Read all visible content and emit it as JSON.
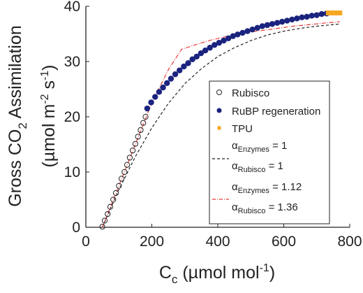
{
  "chart_data": {
    "type": "scatter",
    "x_ticks": [
      0,
      200,
      400,
      600,
      800
    ],
    "y_ticks": [
      0,
      10,
      20,
      30,
      40
    ],
    "xlim": [
      0,
      800
    ],
    "ylim": [
      0,
      40
    ],
    "xlabel": {
      "main": "C",
      "sub": "c",
      "rest": " (µmol mol",
      "sup": "-1",
      "end": ")"
    },
    "ylabel": {
      "line1_a": "Gross CO",
      "line1_sub": "2",
      "line1_b": " Assimilation",
      "line2_a": "(µmol m",
      "line2_sup1": "-2",
      "line2_mid": " s",
      "line2_sup2": "-1",
      "line2_end": ")"
    },
    "colors": {
      "rubisco": "#222222",
      "rubp": "#1a237e",
      "tpu": "#f5a623",
      "red_line": "#e53935",
      "black_line": "#222222"
    },
    "legend": {
      "position": "right, inside axes",
      "rubisco": "Rubisco",
      "rubp": "RuBP regeneration",
      "tpu": "TPU",
      "alpha_enz": "α",
      "enz_sub": "Enzymes",
      "alpha_rub": "α",
      "rub_sub": "Rubisco",
      "fit1_enz": " = 1",
      "fit1_rub": " = 1",
      "fit2_enz": " = 1.12",
      "fit2_rub": " = 1.36"
    },
    "series": [
      {
        "name": "Rubisco",
        "marker": "open-circle",
        "x": [
          50,
          57,
          66,
          74,
          83,
          91,
          100,
          108,
          117,
          125,
          133,
          142,
          150,
          158,
          166,
          174,
          181
        ],
        "y": [
          0.1,
          1.2,
          2.4,
          3.7,
          5.0,
          6.2,
          7.5,
          8.8,
          10.0,
          11.3,
          12.6,
          13.9,
          15.1,
          16.4,
          17.6,
          18.9,
          20.0
        ]
      },
      {
        "name": "RuBP regeneration",
        "marker": "filled-circle",
        "x": [
          186,
          198,
          210,
          222,
          234,
          246,
          258,
          271,
          284,
          297,
          310,
          323,
          336,
          349,
          362,
          376,
          390,
          404,
          418,
          432,
          446,
          460,
          475,
          490,
          505,
          520,
          535,
          550,
          565,
          580,
          595,
          610,
          625,
          640,
          655,
          670,
          685,
          700,
          715,
          730
        ],
        "y": [
          21.5,
          22.6,
          23.6,
          24.5,
          25.3,
          26.1,
          26.9,
          27.7,
          28.4,
          29.1,
          29.7,
          30.4,
          30.9,
          31.5,
          32.0,
          32.5,
          33.0,
          33.4,
          33.8,
          34.2,
          34.6,
          34.9,
          35.2,
          35.5,
          35.8,
          36.1,
          36.4,
          36.6,
          36.8,
          37.0,
          37.2,
          37.4,
          37.6,
          37.8,
          38.0,
          38.1,
          38.3,
          38.4,
          38.6,
          38.7
        ]
      },
      {
        "name": "TPU",
        "marker": "square",
        "x": [
          735,
          742,
          749,
          756,
          763,
          770
        ],
        "y": [
          38.8,
          38.8,
          38.8,
          38.8,
          38.8,
          38.8
        ]
      },
      {
        "name": "αEnzymes = 1, αRubisco = 1",
        "style": "dashed",
        "x": [
          50,
          100,
          150,
          200,
          250,
          300,
          350,
          400,
          450,
          500,
          550,
          600,
          650,
          700,
          770
        ],
        "y": [
          0,
          6.8,
          12.8,
          18.0,
          22.4,
          26.0,
          28.7,
          30.9,
          32.5,
          33.8,
          34.8,
          35.5,
          36.0,
          36.4,
          36.8
        ]
      },
      {
        "name": "αEnzymes = 1.12, αRubisco = 1.36",
        "style": "dashdot",
        "x": [
          50,
          100,
          150,
          200,
          250,
          290,
          330,
          380,
          430,
          480,
          530,
          580,
          630,
          680,
          730,
          770
        ],
        "y": [
          0,
          7.5,
          15.0,
          22.5,
          28.5,
          32.2,
          33.0,
          33.9,
          34.6,
          35.2,
          35.6,
          36.0,
          36.4,
          36.7,
          37.0,
          37.2
        ]
      }
    ]
  }
}
